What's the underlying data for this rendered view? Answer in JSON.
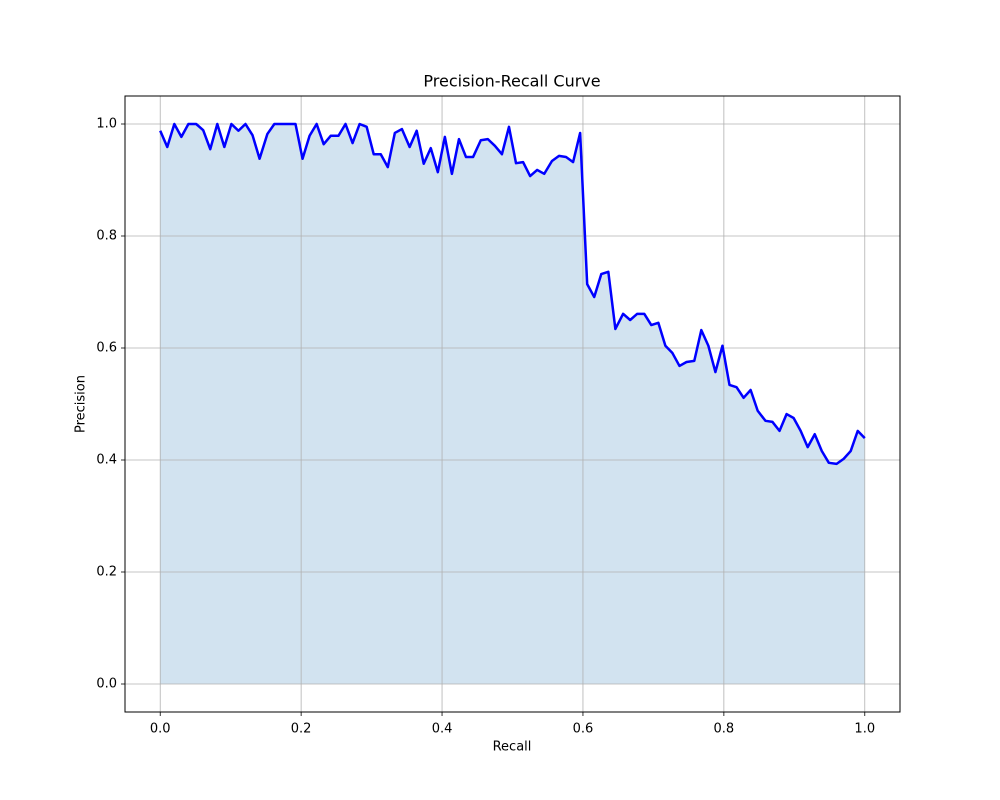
{
  "chart_data": {
    "type": "line",
    "title": "Precision-Recall Curve",
    "xlabel": "Recall",
    "ylabel": "Precision",
    "x": [
      0,
      0.01,
      0.02,
      0.03,
      0.04,
      0.051,
      0.061,
      0.071,
      0.081,
      0.091,
      0.101,
      0.111,
      0.121,
      0.131,
      0.141,
      0.152,
      0.162,
      0.172,
      0.182,
      0.192,
      0.202,
      0.212,
      0.222,
      0.232,
      0.242,
      0.253,
      0.263,
      0.273,
      0.283,
      0.293,
      0.303,
      0.313,
      0.323,
      0.333,
      0.343,
      0.354,
      0.364,
      0.374,
      0.384,
      0.394,
      0.404,
      0.414,
      0.424,
      0.434,
      0.444,
      0.455,
      0.465,
      0.475,
      0.485,
      0.495,
      0.505,
      0.515,
      0.525,
      0.535,
      0.545,
      0.556,
      0.566,
      0.576,
      0.586,
      0.596,
      0.606,
      0.616,
      0.626,
      0.636,
      0.646,
      0.657,
      0.667,
      0.677,
      0.687,
      0.697,
      0.707,
      0.717,
      0.727,
      0.737,
      0.747,
      0.758,
      0.768,
      0.778,
      0.788,
      0.798,
      0.808,
      0.818,
      0.828,
      0.838,
      0.848,
      0.859,
      0.869,
      0.879,
      0.889,
      0.899,
      0.909,
      0.919,
      0.929,
      0.939,
      0.949,
      0.96,
      0.97,
      0.98,
      0.99,
      1.0
    ],
    "series": [
      {
        "name": "Precision",
        "color": "#0000ff",
        "fill_color": "#d2e3f0",
        "values": [
          0.988,
          0.959,
          1.0,
          0.977,
          1.0,
          1.0,
          0.989,
          0.955,
          1.0,
          0.959,
          1.0,
          0.988,
          1.0,
          0.98,
          0.938,
          0.982,
          1.0,
          1.0,
          1.0,
          1.0,
          0.938,
          0.979,
          1.0,
          0.964,
          0.979,
          0.979,
          1.0,
          0.966,
          1.0,
          0.995,
          0.946,
          0.946,
          0.923,
          0.984,
          0.991,
          0.959,
          0.988,
          0.929,
          0.957,
          0.914,
          0.977,
          0.911,
          0.973,
          0.941,
          0.941,
          0.971,
          0.973,
          0.961,
          0.946,
          0.995,
          0.93,
          0.932,
          0.907,
          0.918,
          0.911,
          0.934,
          0.943,
          0.941,
          0.932,
          0.984,
          0.714,
          0.691,
          0.732,
          0.736,
          0.634,
          0.661,
          0.65,
          0.661,
          0.661,
          0.641,
          0.645,
          0.604,
          0.591,
          0.568,
          0.575,
          0.577,
          0.632,
          0.604,
          0.557,
          0.604,
          0.534,
          0.53,
          0.511,
          0.525,
          0.488,
          0.47,
          0.468,
          0.452,
          0.482,
          0.475,
          0.452,
          0.423,
          0.446,
          0.416,
          0.395,
          0.393,
          0.402,
          0.416,
          0.452,
          0.439
        ]
      }
    ],
    "xlim": [
      -0.05,
      1.05
    ],
    "ylim": [
      -0.05,
      1.05
    ],
    "xticks": [
      {
        "value": 0,
        "label": "0.0"
      },
      {
        "value": 0.2,
        "label": "0.2"
      },
      {
        "value": 0.4,
        "label": "0.4"
      },
      {
        "value": 0.6,
        "label": "0.6"
      },
      {
        "value": 0.8,
        "label": "0.8"
      },
      {
        "value": 1,
        "label": "1.0"
      }
    ],
    "yticks": [
      {
        "value": 0,
        "label": "0.0"
      },
      {
        "value": 0.2,
        "label": "0.2"
      },
      {
        "value": 0.4,
        "label": "0.4"
      },
      {
        "value": 0.6,
        "label": "0.6"
      },
      {
        "value": 0.8,
        "label": "0.8"
      },
      {
        "value": 1,
        "label": "1.0"
      }
    ],
    "grid": true
  }
}
